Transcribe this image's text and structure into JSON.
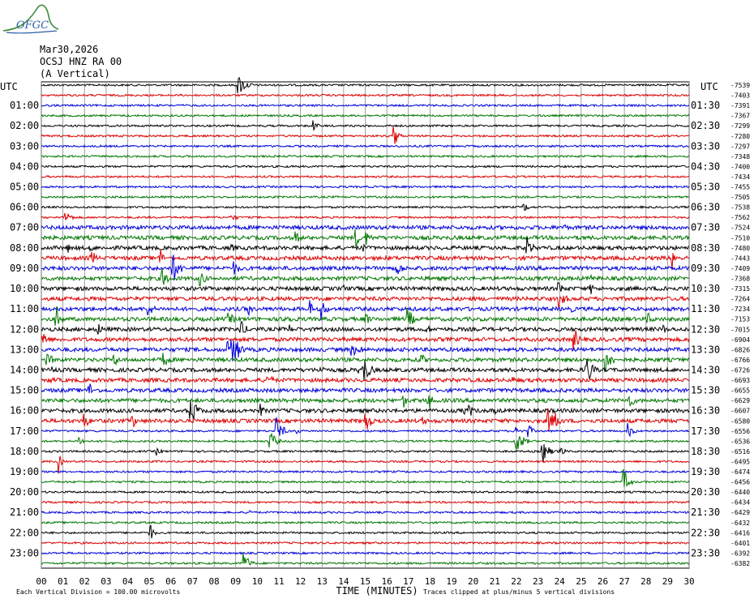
{
  "logo_text": "OFGC",
  "header": {
    "date": "Mar30,2026",
    "station": "OCSJ HNZ RA 00",
    "component": "(A Vertical)"
  },
  "chart_data": {
    "type": "line",
    "title": "",
    "axis_label_left": "UTC",
    "axis_label_right": "UTC",
    "xlabel": "TIME (MINUTES)",
    "xlim": [
      0,
      30
    ],
    "x_ticks": [
      "00",
      "01",
      "02",
      "03",
      "04",
      "05",
      "06",
      "07",
      "08",
      "09",
      "10",
      "11",
      "12",
      "13",
      "14",
      "15",
      "16",
      "17",
      "18",
      "19",
      "20",
      "21",
      "22",
      "23",
      "24",
      "25",
      "26",
      "27",
      "28",
      "29",
      "30"
    ],
    "left_hour_labels": [
      "01:00",
      "02:00",
      "03:00",
      "04:00",
      "05:00",
      "06:00",
      "07:00",
      "08:00",
      "09:00",
      "10:00",
      "11:00",
      "12:00",
      "13:00",
      "14:00",
      "15:00",
      "16:00",
      "17:00",
      "18:00",
      "19:00",
      "20:00",
      "21:00",
      "22:00",
      "23:00"
    ],
    "right_hour_labels": [
      "01:30",
      "02:30",
      "03:30",
      "04:30",
      "05:30",
      "06:30",
      "07:30",
      "08:30",
      "09:30",
      "10:30",
      "11:30",
      "12:30",
      "13:30",
      "14:30",
      "15:30",
      "16:30",
      "17:30",
      "18:30",
      "19:30",
      "20:30",
      "21:30",
      "22:30",
      "23:30"
    ],
    "trace_colors": [
      "#000000",
      "#dd0000",
      "#0000dd",
      "#007700"
    ],
    "trace_offsets": [
      "-7539",
      "-7403",
      "-7391",
      "-7367",
      "-7299",
      "-7280",
      "-7297",
      "-7348",
      "-7400",
      "-7434",
      "-7455",
      "-7505",
      "-7538",
      "-7562",
      "-7524",
      "-7510",
      "-7480",
      "-7443",
      "-7409",
      "-7368",
      "-7315",
      "-7264",
      "-7234",
      "-7153",
      "-7015",
      "-6904",
      "-6826",
      "-6766",
      "-6726",
      "-6693",
      "-6655",
      "-6629",
      "-6607",
      "-6580",
      "-6556",
      "-6536",
      "-6516",
      "-6495",
      "-6474",
      "-6456",
      "-6440",
      "-6434",
      "-6429",
      "-6432",
      "-6416",
      "-6401",
      "-6392",
      "-6382"
    ],
    "footer_left": "Each Vertical Division =  100.00 microvolts",
    "footer_right": "Traces clipped at plus/minus 5 vertical divisions",
    "grid": true
  }
}
